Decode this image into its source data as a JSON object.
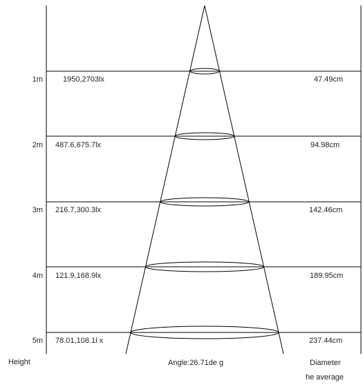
{
  "rows": [
    {
      "height": "1m",
      "illuminance": "1950,2703lx",
      "diameter": "47.49cm"
    },
    {
      "height": "2m",
      "illuminance": "487.6,675.7lx",
      "diameter": "94.98cm"
    },
    {
      "height": "3m",
      "illuminance": "216.7,300.3lx",
      "diameter": "142.46cm"
    },
    {
      "height": "4m",
      "illuminance": "121.9,168.9lx",
      "diameter": "189.95cm"
    },
    {
      "height": "5m",
      "illuminance": "78.01,108.1l x",
      "diameter": "237.44cm"
    }
  ],
  "footer": {
    "height_label": "Height",
    "angle_label": "Angle:26.71de g",
    "diameter_label": "Diameter",
    "note": "he average"
  },
  "colors": {
    "line": "#000000",
    "text": "#222222"
  }
}
